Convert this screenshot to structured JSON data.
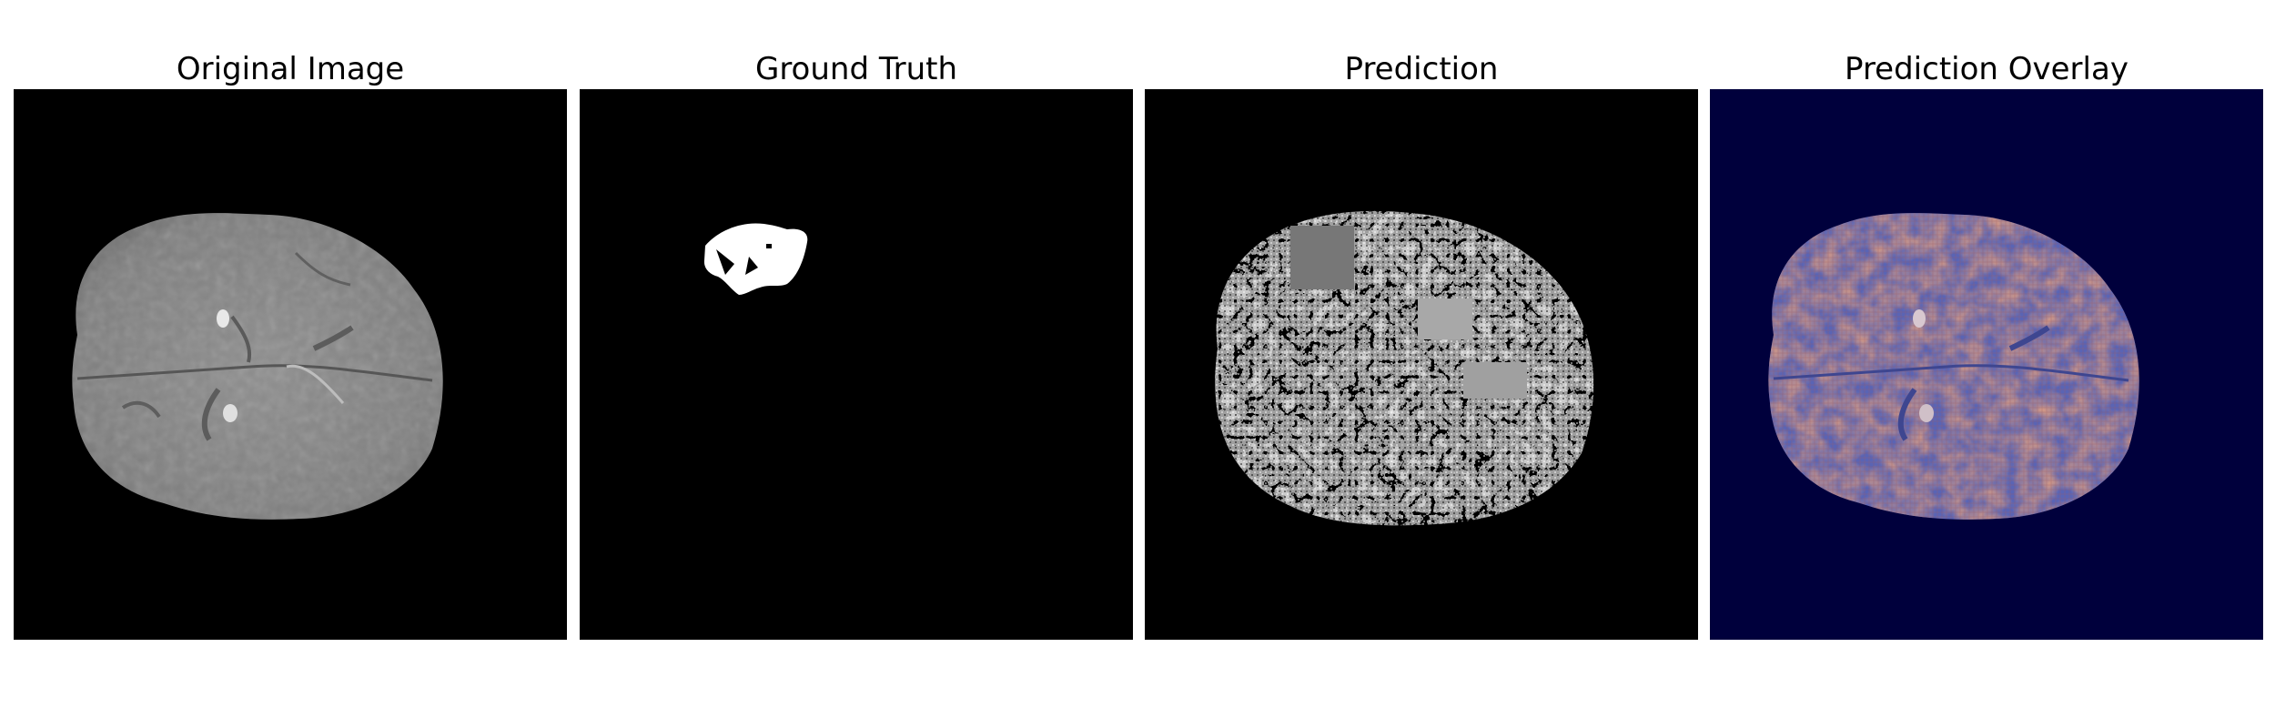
{
  "panels": [
    {
      "title": "Original Image",
      "content": "brain-mri-slice"
    },
    {
      "title": "Ground Truth",
      "content": "tumor-mask"
    },
    {
      "title": "Prediction",
      "content": "predicted-segmentation-mask"
    },
    {
      "title": "Prediction Overlay",
      "content": "prediction-over-mri"
    }
  ],
  "colors": {
    "background": "#000000",
    "overlay_background": "#00003c",
    "mask": "#ffffff",
    "overlay_tint": "#b0553a",
    "overlay_cool": "#5a64b4"
  }
}
